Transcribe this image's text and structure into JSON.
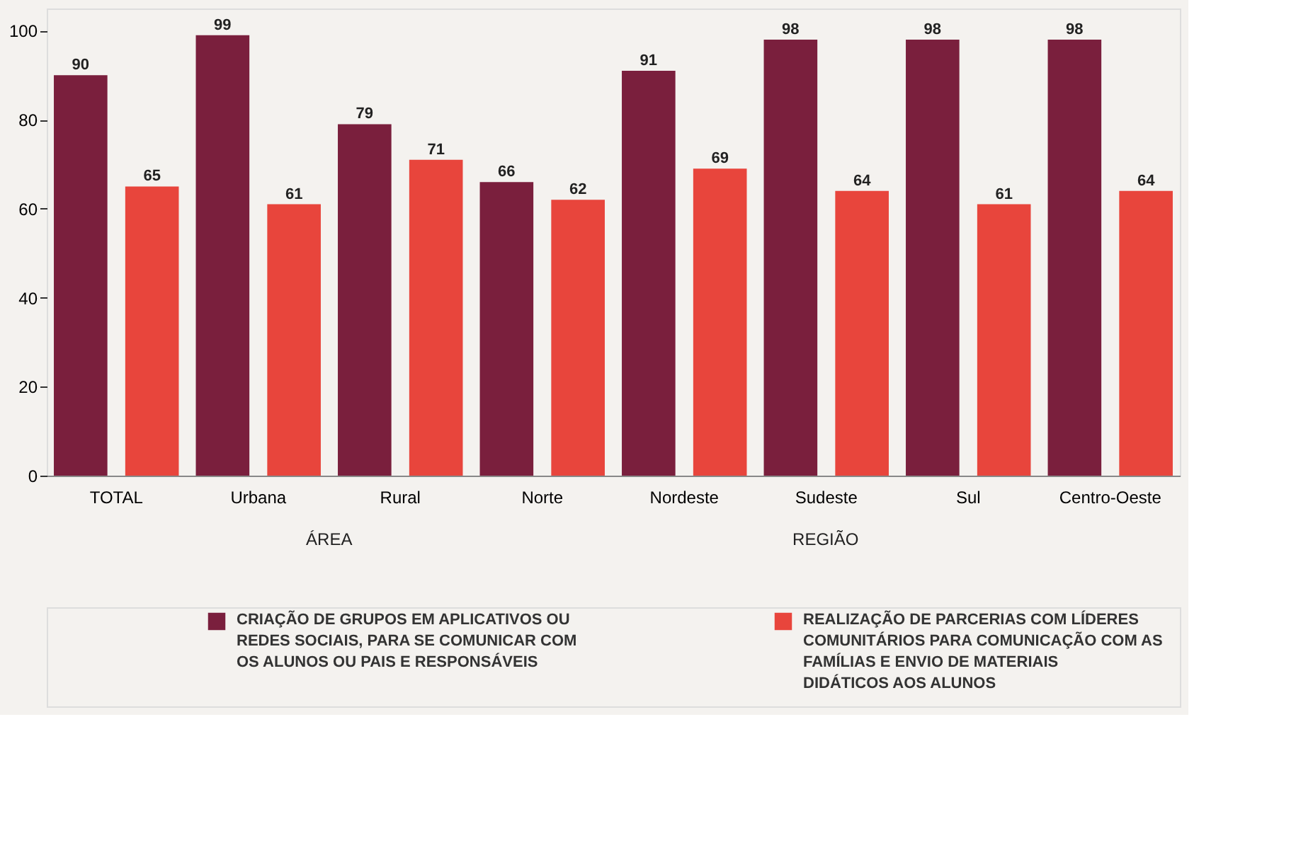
{
  "chart_data": {
    "type": "bar",
    "categories": [
      "TOTAL",
      "Urbana",
      "Rural",
      "Norte",
      "Nordeste",
      "Sudeste",
      "Sul",
      "Centro-Oeste"
    ],
    "series": [
      {
        "name": "CRIAÇÃO DE GRUPOS EM APLICATIVOS OU REDES SOCIAIS, PARA SE COMUNICAR COM OS ALUNOS OU PAIS E RESPONSÁVEIS",
        "color": "#7a1f3d",
        "values": [
          90,
          99,
          79,
          66,
          91,
          98,
          98,
          98
        ]
      },
      {
        "name": "REALIZAÇÃO DE PARCERIAS COM LÍDERES COMUNITÁRIOS PARA COMUNICAÇÃO COM AS FAMÍLIAS E ENVIO DE MATERIAIS DIDÁTICOS AOS ALUNOS",
        "color": "#e8453c",
        "values": [
          65,
          61,
          71,
          62,
          69,
          64,
          61,
          64
        ]
      }
    ],
    "ylim": [
      0,
      105
    ],
    "yticks": [
      0,
      20,
      40,
      60,
      80,
      100
    ],
    "data_labels": true,
    "legend": "bottom",
    "grid": false,
    "annotations": [
      "ÁREA",
      "REGIÃO"
    ]
  }
}
